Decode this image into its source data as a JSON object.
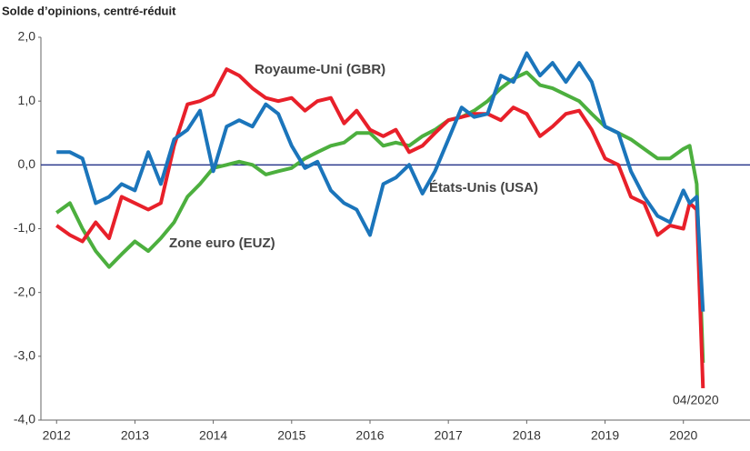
{
  "chart_data": {
    "type": "line",
    "title": "Solde d’opinions, centré-réduit",
    "x": [
      2012,
      2012.17,
      2012.33,
      2012.5,
      2012.67,
      2012.83,
      2013,
      2013.17,
      2013.33,
      2013.5,
      2013.67,
      2013.83,
      2014,
      2014.17,
      2014.33,
      2014.5,
      2014.67,
      2014.83,
      2015,
      2015.17,
      2015.33,
      2015.5,
      2015.67,
      2015.83,
      2016,
      2016.17,
      2016.33,
      2016.5,
      2016.67,
      2016.83,
      2017,
      2017.17,
      2017.33,
      2017.5,
      2017.67,
      2017.83,
      2018,
      2018.17,
      2018.33,
      2018.5,
      2018.67,
      2018.83,
      2019,
      2019.17,
      2019.33,
      2019.5,
      2019.67,
      2019.83,
      2020,
      2020.08,
      2020.17,
      2020.25
    ],
    "series": [
      {
        "name": "Zone euro (EUZ)",
        "color": "#4caf3e",
        "values": [
          -0.75,
          -0.6,
          -1.0,
          -1.35,
          -1.6,
          -1.4,
          -1.2,
          -1.35,
          -1.15,
          -0.9,
          -0.5,
          -0.3,
          -0.05,
          0.0,
          0.05,
          0.0,
          -0.15,
          -0.1,
          -0.05,
          0.1,
          0.2,
          0.3,
          0.35,
          0.5,
          0.5,
          0.3,
          0.35,
          0.3,
          0.45,
          0.55,
          0.7,
          0.75,
          0.85,
          1.0,
          1.2,
          1.35,
          1.45,
          1.25,
          1.2,
          1.1,
          1.0,
          0.8,
          0.6,
          0.5,
          0.4,
          0.25,
          0.1,
          0.1,
          0.25,
          0.3,
          -0.3,
          -3.1
        ]
      },
      {
        "name": "Royaume-Uni (GBR)",
        "color": "#e8202a",
        "values": [
          -0.95,
          -1.1,
          -1.2,
          -0.9,
          -1.15,
          -0.5,
          -0.6,
          -0.7,
          -0.6,
          0.3,
          0.95,
          1.0,
          1.1,
          1.5,
          1.4,
          1.2,
          1.05,
          1.0,
          1.05,
          0.85,
          1.0,
          1.05,
          0.65,
          0.85,
          0.55,
          0.45,
          0.55,
          0.2,
          0.3,
          0.5,
          0.7,
          0.75,
          0.8,
          0.8,
          0.7,
          0.9,
          0.8,
          0.45,
          0.6,
          0.8,
          0.85,
          0.55,
          0.1,
          0.0,
          -0.5,
          -0.6,
          -1.1,
          -0.95,
          -1.0,
          -0.6,
          -0.7,
          -3.5
        ]
      },
      {
        "name": "États-Unis (USA)",
        "color": "#1b75bb",
        "values": [
          0.2,
          0.2,
          0.1,
          -0.6,
          -0.5,
          -0.3,
          -0.4,
          0.2,
          -0.3,
          0.4,
          0.55,
          0.85,
          -0.1,
          0.6,
          0.7,
          0.6,
          0.95,
          0.8,
          0.3,
          -0.05,
          0.05,
          -0.4,
          -0.6,
          -0.7,
          -1.1,
          -0.3,
          -0.2,
          0.0,
          -0.45,
          -0.1,
          0.4,
          0.9,
          0.75,
          0.8,
          1.4,
          1.3,
          1.75,
          1.4,
          1.6,
          1.3,
          1.6,
          1.3,
          0.6,
          0.5,
          -0.1,
          -0.5,
          -0.8,
          -0.9,
          -0.4,
          -0.6,
          -0.5,
          -2.3
        ]
      }
    ],
    "annotations": [
      "Royaume-Uni (GBR)",
      "États-Unis (USA)",
      "Zone euro (EUZ)",
      "04/2020"
    ],
    "xlim": [
      2011.8,
      2020.85
    ],
    "xticks": [
      2012,
      2013,
      2014,
      2015,
      2016,
      2017,
      2018,
      2019,
      2020
    ],
    "ylim": [
      -4,
      2
    ],
    "yticks": [
      {
        "value": -4,
        "label": "-4,0"
      },
      {
        "value": -3,
        "label": "-3,0"
      },
      {
        "value": -2,
        "label": "-2,0"
      },
      {
        "value": -1,
        "label": "-1,0"
      },
      {
        "value": 0,
        "label": "0,0"
      },
      {
        "value": 1,
        "label": "1,0"
      },
      {
        "value": 2,
        "label": "2,0"
      }
    ],
    "grid": false
  }
}
